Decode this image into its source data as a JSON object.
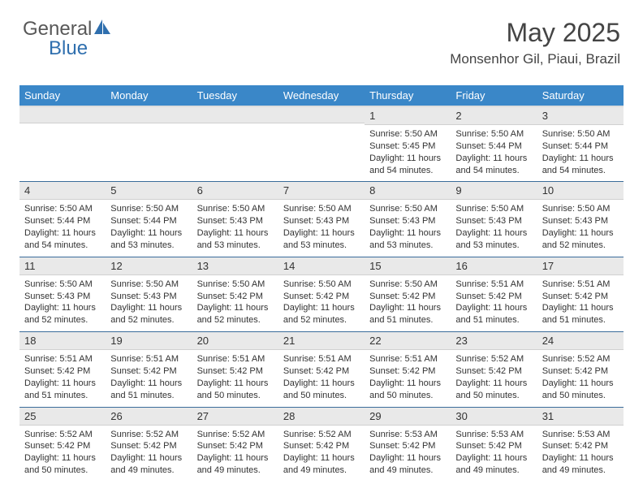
{
  "brand": {
    "part1": "General",
    "part2": "Blue"
  },
  "header": {
    "title": "May 2025",
    "location": "Monsenhor Gil, Piaui, Brazil"
  },
  "colors": {
    "header_bg": "#3a87c8",
    "header_fg": "#ffffff",
    "daynum_bg": "#e9e9e9",
    "row_divider": "#3a6c9a",
    "brand_gray": "#585858",
    "brand_blue": "#2f6fae"
  },
  "typography": {
    "title_fontsize": 32,
    "location_fontsize": 17,
    "dayhead_fontsize": 13,
    "body_fontsize": 11
  },
  "day_headers": [
    "Sunday",
    "Monday",
    "Tuesday",
    "Wednesday",
    "Thursday",
    "Friday",
    "Saturday"
  ],
  "weeks": [
    [
      {
        "n": "",
        "sr": "",
        "ss": "",
        "dl": ""
      },
      {
        "n": "",
        "sr": "",
        "ss": "",
        "dl": ""
      },
      {
        "n": "",
        "sr": "",
        "ss": "",
        "dl": ""
      },
      {
        "n": "",
        "sr": "",
        "ss": "",
        "dl": ""
      },
      {
        "n": "1",
        "sr": "Sunrise: 5:50 AM",
        "ss": "Sunset: 5:45 PM",
        "dl": "Daylight: 11 hours and 54 minutes."
      },
      {
        "n": "2",
        "sr": "Sunrise: 5:50 AM",
        "ss": "Sunset: 5:44 PM",
        "dl": "Daylight: 11 hours and 54 minutes."
      },
      {
        "n": "3",
        "sr": "Sunrise: 5:50 AM",
        "ss": "Sunset: 5:44 PM",
        "dl": "Daylight: 11 hours and 54 minutes."
      }
    ],
    [
      {
        "n": "4",
        "sr": "Sunrise: 5:50 AM",
        "ss": "Sunset: 5:44 PM",
        "dl": "Daylight: 11 hours and 54 minutes."
      },
      {
        "n": "5",
        "sr": "Sunrise: 5:50 AM",
        "ss": "Sunset: 5:44 PM",
        "dl": "Daylight: 11 hours and 53 minutes."
      },
      {
        "n": "6",
        "sr": "Sunrise: 5:50 AM",
        "ss": "Sunset: 5:43 PM",
        "dl": "Daylight: 11 hours and 53 minutes."
      },
      {
        "n": "7",
        "sr": "Sunrise: 5:50 AM",
        "ss": "Sunset: 5:43 PM",
        "dl": "Daylight: 11 hours and 53 minutes."
      },
      {
        "n": "8",
        "sr": "Sunrise: 5:50 AM",
        "ss": "Sunset: 5:43 PM",
        "dl": "Daylight: 11 hours and 53 minutes."
      },
      {
        "n": "9",
        "sr": "Sunrise: 5:50 AM",
        "ss": "Sunset: 5:43 PM",
        "dl": "Daylight: 11 hours and 53 minutes."
      },
      {
        "n": "10",
        "sr": "Sunrise: 5:50 AM",
        "ss": "Sunset: 5:43 PM",
        "dl": "Daylight: 11 hours and 52 minutes."
      }
    ],
    [
      {
        "n": "11",
        "sr": "Sunrise: 5:50 AM",
        "ss": "Sunset: 5:43 PM",
        "dl": "Daylight: 11 hours and 52 minutes."
      },
      {
        "n": "12",
        "sr": "Sunrise: 5:50 AM",
        "ss": "Sunset: 5:43 PM",
        "dl": "Daylight: 11 hours and 52 minutes."
      },
      {
        "n": "13",
        "sr": "Sunrise: 5:50 AM",
        "ss": "Sunset: 5:42 PM",
        "dl": "Daylight: 11 hours and 52 minutes."
      },
      {
        "n": "14",
        "sr": "Sunrise: 5:50 AM",
        "ss": "Sunset: 5:42 PM",
        "dl": "Daylight: 11 hours and 52 minutes."
      },
      {
        "n": "15",
        "sr": "Sunrise: 5:50 AM",
        "ss": "Sunset: 5:42 PM",
        "dl": "Daylight: 11 hours and 51 minutes."
      },
      {
        "n": "16",
        "sr": "Sunrise: 5:51 AM",
        "ss": "Sunset: 5:42 PM",
        "dl": "Daylight: 11 hours and 51 minutes."
      },
      {
        "n": "17",
        "sr": "Sunrise: 5:51 AM",
        "ss": "Sunset: 5:42 PM",
        "dl": "Daylight: 11 hours and 51 minutes."
      }
    ],
    [
      {
        "n": "18",
        "sr": "Sunrise: 5:51 AM",
        "ss": "Sunset: 5:42 PM",
        "dl": "Daylight: 11 hours and 51 minutes."
      },
      {
        "n": "19",
        "sr": "Sunrise: 5:51 AM",
        "ss": "Sunset: 5:42 PM",
        "dl": "Daylight: 11 hours and 51 minutes."
      },
      {
        "n": "20",
        "sr": "Sunrise: 5:51 AM",
        "ss": "Sunset: 5:42 PM",
        "dl": "Daylight: 11 hours and 50 minutes."
      },
      {
        "n": "21",
        "sr": "Sunrise: 5:51 AM",
        "ss": "Sunset: 5:42 PM",
        "dl": "Daylight: 11 hours and 50 minutes."
      },
      {
        "n": "22",
        "sr": "Sunrise: 5:51 AM",
        "ss": "Sunset: 5:42 PM",
        "dl": "Daylight: 11 hours and 50 minutes."
      },
      {
        "n": "23",
        "sr": "Sunrise: 5:52 AM",
        "ss": "Sunset: 5:42 PM",
        "dl": "Daylight: 11 hours and 50 minutes."
      },
      {
        "n": "24",
        "sr": "Sunrise: 5:52 AM",
        "ss": "Sunset: 5:42 PM",
        "dl": "Daylight: 11 hours and 50 minutes."
      }
    ],
    [
      {
        "n": "25",
        "sr": "Sunrise: 5:52 AM",
        "ss": "Sunset: 5:42 PM",
        "dl": "Daylight: 11 hours and 50 minutes."
      },
      {
        "n": "26",
        "sr": "Sunrise: 5:52 AM",
        "ss": "Sunset: 5:42 PM",
        "dl": "Daylight: 11 hours and 49 minutes."
      },
      {
        "n": "27",
        "sr": "Sunrise: 5:52 AM",
        "ss": "Sunset: 5:42 PM",
        "dl": "Daylight: 11 hours and 49 minutes."
      },
      {
        "n": "28",
        "sr": "Sunrise: 5:52 AM",
        "ss": "Sunset: 5:42 PM",
        "dl": "Daylight: 11 hours and 49 minutes."
      },
      {
        "n": "29",
        "sr": "Sunrise: 5:53 AM",
        "ss": "Sunset: 5:42 PM",
        "dl": "Daylight: 11 hours and 49 minutes."
      },
      {
        "n": "30",
        "sr": "Sunrise: 5:53 AM",
        "ss": "Sunset: 5:42 PM",
        "dl": "Daylight: 11 hours and 49 minutes."
      },
      {
        "n": "31",
        "sr": "Sunrise: 5:53 AM",
        "ss": "Sunset: 5:42 PM",
        "dl": "Daylight: 11 hours and 49 minutes."
      }
    ]
  ]
}
